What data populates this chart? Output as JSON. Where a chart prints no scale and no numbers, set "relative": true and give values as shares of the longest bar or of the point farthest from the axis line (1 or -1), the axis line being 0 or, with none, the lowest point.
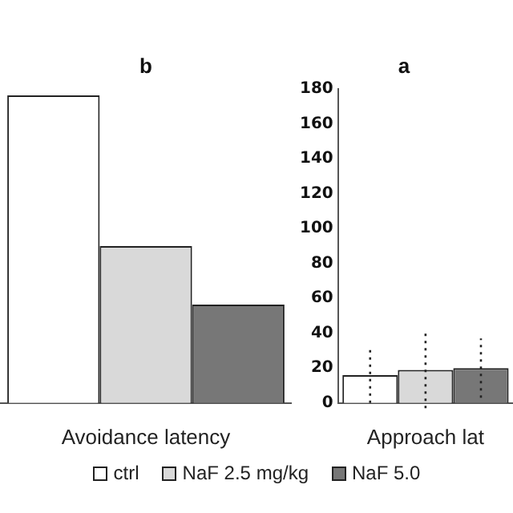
{
  "chart_data": [
    {
      "type": "bar",
      "title": "b",
      "xlabel": "Avoidance latency",
      "categories": [
        null
      ],
      "relative": true,
      "grid": false,
      "legend": "bottom",
      "series": [
        {
          "name": "ctrl",
          "color": "#ffffff",
          "values": [
            1
          ]
        },
        {
          "name": "NaF 2.5 mg/kg",
          "color": "#d9d9d9",
          "values": [
            0.51
          ]
        },
        {
          "name": "NaF 5.0",
          "color": "#777777",
          "values": [
            0.32
          ]
        }
      ]
    },
    {
      "type": "bar",
      "title": "a",
      "xlabel": "Approach lat",
      "categories": [
        null
      ],
      "ylim": [
        0,
        180
      ],
      "yticks": [
        0,
        20,
        40,
        60,
        80,
        100,
        120,
        140,
        160,
        180
      ],
      "grid": false,
      "series": [
        {
          "color": "#ffffff",
          "values": [
            16
          ],
          "errors": [
            16
          ]
        },
        {
          "color": "#d9d9d9",
          "values": [
            19
          ],
          "errors": [
            22
          ]
        },
        {
          "color": "#777777",
          "values": [
            20
          ],
          "errors": [
            17
          ]
        }
      ]
    }
  ]
}
